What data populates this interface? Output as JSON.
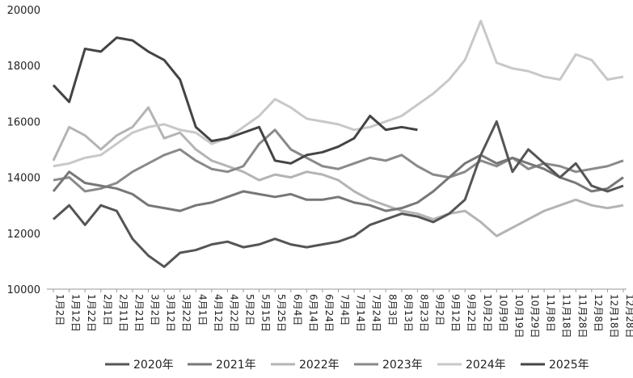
{
  "chart_data": {
    "type": "line",
    "title": "",
    "xlabel": "",
    "ylabel": "",
    "ylim": [
      10000,
      20000
    ],
    "yticks": [
      "10000",
      "12000",
      "14000",
      "16000",
      "18000",
      "20000"
    ],
    "x_categories": [
      "1月2日",
      "1月12日",
      "1月22日",
      "2月1日",
      "2月11日",
      "2月21日",
      "3月2日",
      "3月12日",
      "3月22日",
      "4月1日",
      "4月12日",
      "4月22日",
      "5月2日",
      "5月15日",
      "5月25日",
      "6月4日",
      "6月14日",
      "6月24日",
      "7月4日",
      "7月14日",
      "7月24日",
      "8月3日",
      "8月13日",
      "8月23日",
      "9月2日",
      "9月12日",
      "9月22日",
      "10月2日",
      "10月9日",
      "10月19日",
      "10月29日",
      "11月8日",
      "11月18日",
      "11月28日",
      "12月8日",
      "12月18日",
      "12月28日"
    ],
    "grid": false,
    "legend_position": "bottom",
    "colors": {
      "2020年": "#555555",
      "2021年": "#777777",
      "2022年": "#b4b4b4",
      "2023年": "#8a8a8a",
      "2024年": "#c8c8c8",
      "2025年": "#444444"
    },
    "series": [
      {
        "name": "2020年",
        "values": [
          12500,
          13000,
          12300,
          13000,
          12800,
          11800,
          11200,
          10800,
          11300,
          11400,
          11600,
          11700,
          11500,
          11600,
          11800,
          11600,
          11500,
          11600,
          11700,
          11900,
          12300,
          12500,
          12700,
          12600,
          12400,
          12700,
          13200,
          14800,
          16000,
          14200,
          15000,
          14500,
          14000,
          14500,
          13700,
          13500,
          13700
        ]
      },
      {
        "name": "2021年",
        "values": [
          13500,
          14200,
          13800,
          13700,
          13600,
          13400,
          13000,
          12900,
          12800,
          13000,
          13100,
          13300,
          13500,
          13400,
          13300,
          13400,
          13200,
          13200,
          13300,
          13100,
          13000,
          12800,
          12900,
          13100,
          13500,
          14000,
          14500,
          14800,
          14500,
          14700,
          14500,
          14300,
          14000,
          13800,
          13500,
          13600,
          14000
        ]
      },
      {
        "name": "2022年",
        "values": [
          14600,
          15800,
          15500,
          15000,
          15500,
          15800,
          16500,
          15400,
          15600,
          15000,
          14600,
          14400,
          14200,
          13900,
          14100,
          14000,
          14200,
          14100,
          13900,
          13500,
          13200,
          13000,
          12800,
          12700,
          12500,
          12700,
          12800,
          12400,
          11900,
          12200,
          12500,
          12800,
          13000,
          13200,
          13000,
          12900,
          13000
        ]
      },
      {
        "name": "2023年",
        "values": [
          13900,
          14000,
          13500,
          13600,
          13800,
          14200,
          14500,
          14800,
          15000,
          14600,
          14300,
          14200,
          14400,
          15200,
          15700,
          15000,
          14700,
          14400,
          14300,
          14500,
          14700,
          14600,
          14800,
          14400,
          14100,
          14000,
          14200,
          14600,
          14400,
          14700,
          14300,
          14500,
          14400,
          14200,
          14300,
          14400,
          14600
        ]
      },
      {
        "name": "2024年",
        "values": [
          14400,
          14500,
          14700,
          14800,
          15200,
          15600,
          15800,
          15900,
          15700,
          15600,
          15200,
          15400,
          15800,
          16200,
          16800,
          16500,
          16100,
          16000,
          15900,
          15700,
          15800,
          16000,
          16200,
          16600,
          17000,
          17500,
          18200,
          19600,
          18100,
          17900,
          17800,
          17600,
          17500,
          18400,
          18200,
          17500,
          17600
        ]
      },
      {
        "name": "2025年",
        "values": [
          17300,
          16700,
          18600,
          18500,
          19000,
          18900,
          18500,
          18200,
          17500,
          15800,
          15300,
          15400,
          15600,
          15800,
          14600,
          14500,
          14800,
          14900,
          15100,
          15400,
          16200,
          15700,
          15800,
          15700
        ]
      }
    ]
  }
}
